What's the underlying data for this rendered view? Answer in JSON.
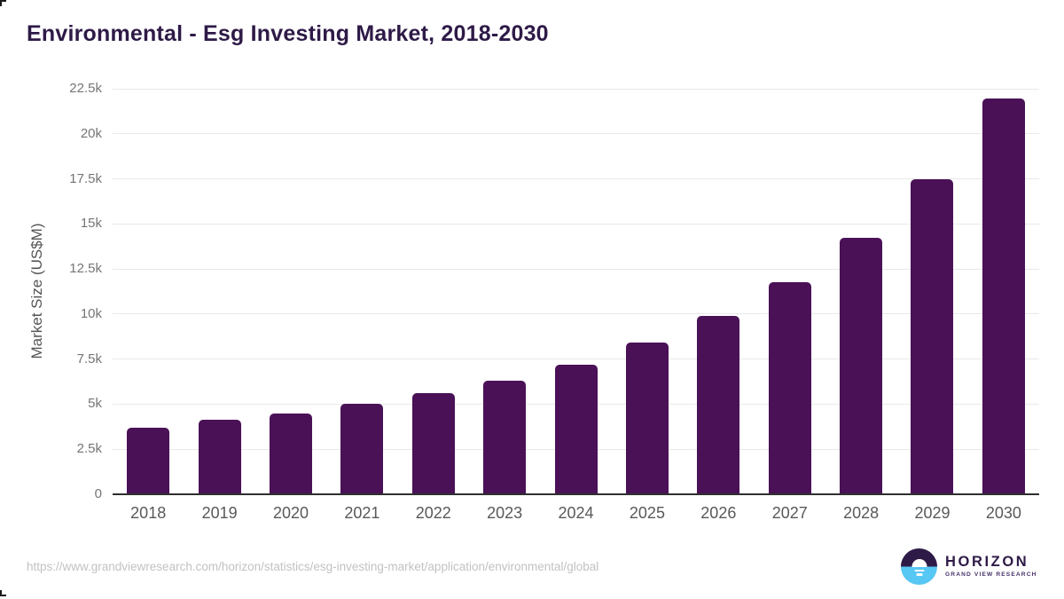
{
  "title": "Environmental - Esg Investing Market, 2018-2030",
  "y_axis_title": "Market Size (US$M)",
  "footer": {
    "source_url": "https://www.grandviewresearch.com/horizon/statistics/esg-investing-market/application/environmental/global",
    "logo_name": "HORIZON",
    "logo_subtitle": "GRAND VIEW RESEARCH"
  },
  "colors": {
    "bar": "#4a1157",
    "title_text": "#2e1a47",
    "grid_line": "#e9e9e9",
    "axis_line": "#2f2f2f",
    "y_tick_text": "#757575",
    "x_tick_text": "#595959",
    "url_text": "#c2c2c2",
    "logo_dark": "#2e1a47",
    "logo_blue": "#57c7f3"
  },
  "chart_data": {
    "type": "bar",
    "title": "Environmental - Esg Investing Market, 2018-2030",
    "categories": [
      "2018",
      "2019",
      "2020",
      "2021",
      "2022",
      "2023",
      "2024",
      "2025",
      "2026",
      "2027",
      "2028",
      "2029",
      "2030"
    ],
    "values": [
      3700,
      4150,
      4500,
      5000,
      5600,
      6300,
      7200,
      8400,
      9900,
      11750,
      14250,
      17500,
      21950
    ],
    "xlabel": "",
    "ylabel": "Market Size (US$M)",
    "ylim": [
      0,
      22500
    ],
    "yticks": [
      0,
      2500,
      5000,
      7500,
      10000,
      12500,
      15000,
      17500,
      20000,
      22500
    ],
    "ytick_labels": [
      "0",
      "2.5k",
      "5k",
      "7.5k",
      "10k",
      "12.5k",
      "15k",
      "17.5k",
      "20k",
      "22.5k"
    ],
    "grid": true,
    "legend": false,
    "bar_color": "#4a1157"
  }
}
